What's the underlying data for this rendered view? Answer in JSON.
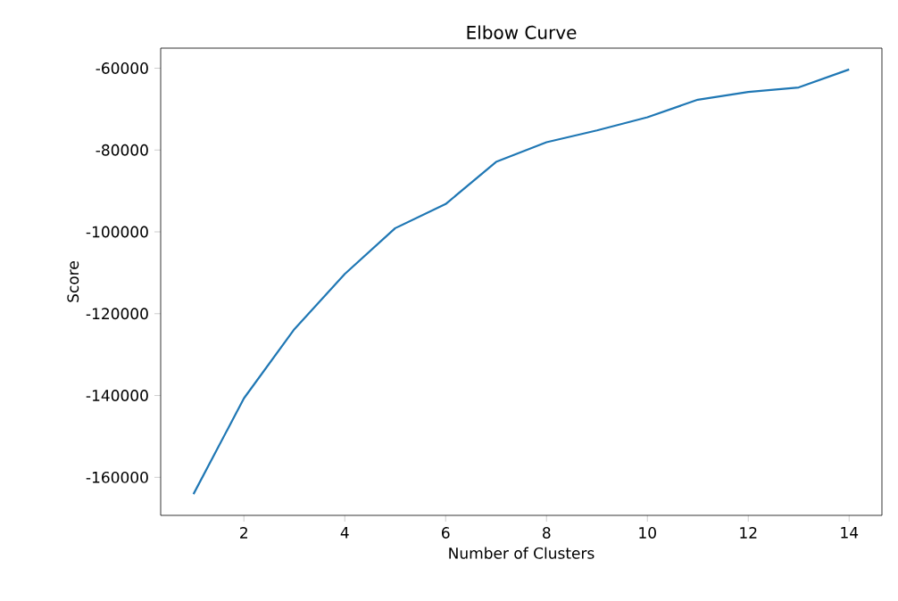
{
  "chart_data": {
    "type": "line",
    "title": "Elbow Curve",
    "xlabel": "Number of Clusters",
    "ylabel": "Score",
    "x": [
      1,
      2,
      3,
      4,
      5,
      6,
      7,
      8,
      9,
      10,
      11,
      12,
      13,
      14
    ],
    "series": [
      {
        "color": "#1f77b4",
        "values": [
          -164100,
          -140700,
          -123800,
          -110300,
          -99100,
          -93200,
          -82900,
          -78100,
          -75200,
          -72000,
          -67700,
          -65800,
          -64700,
          -60300
        ]
      }
    ],
    "xlim": [
      0.35,
      14.65
    ],
    "ylim": [
      -169300,
      -55100
    ],
    "xticks": [
      2,
      4,
      6,
      8,
      10,
      12,
      14
    ],
    "yticks": [
      -160000,
      -140000,
      -120000,
      -100000,
      -80000,
      -60000
    ],
    "grid": false,
    "marker": "none",
    "line_style": "solid"
  }
}
